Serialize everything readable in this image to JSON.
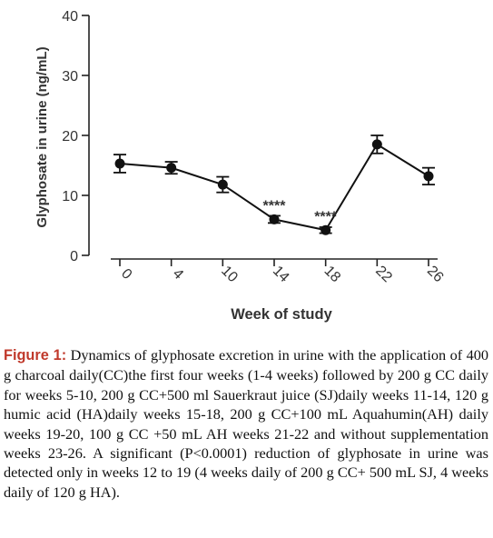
{
  "chart_data": {
    "type": "line",
    "ylabel": "Glyphosate in urine (ng/mL)",
    "xlabel": "Week of study",
    "ylim": [
      0,
      40
    ],
    "y_ticks": [
      "0",
      "10",
      "20",
      "30",
      "40"
    ],
    "categories": [
      "0",
      "4",
      "10",
      "14",
      "18",
      "22",
      "26"
    ],
    "series": [
      {
        "values": [
          15.3,
          14.6,
          11.8,
          6.0,
          4.2,
          18.5,
          13.2
        ],
        "error": [
          1.5,
          1.0,
          1.3,
          0.6,
          0.5,
          1.5,
          1.4
        ]
      }
    ],
    "annotations": [
      {
        "category": "14",
        "text": "****"
      },
      {
        "category": "18",
        "text": "****"
      }
    ],
    "line_color": "#111111",
    "marker": "filled-circle"
  },
  "caption": {
    "label": "Figure 1:",
    "text": " Dynamics of glyphosate excretion in urine with the application of 400 g charcoal daily(CC)the first four weeks (1-4 weeks) followed by 200 g CC daily for weeks 5-10, 200 g CC+500 ml Sauerkraut juice (SJ)daily weeks 11-14, 120 g humic acid (HA)daily weeks 15-18, 200 g CC+100 mL Aquahumin(AH) daily weeks 19-20, 100 g CC +50 mL AH weeks 21-22 and without supplementation weeks 23-26. A significant (P<0.0001) reduction of glyphosate in urine was detected only in weeks 12 to 19 (4 weeks daily of 200 g CC+ 500 mL SJ, 4 weeks daily of 120 g HA)."
  }
}
